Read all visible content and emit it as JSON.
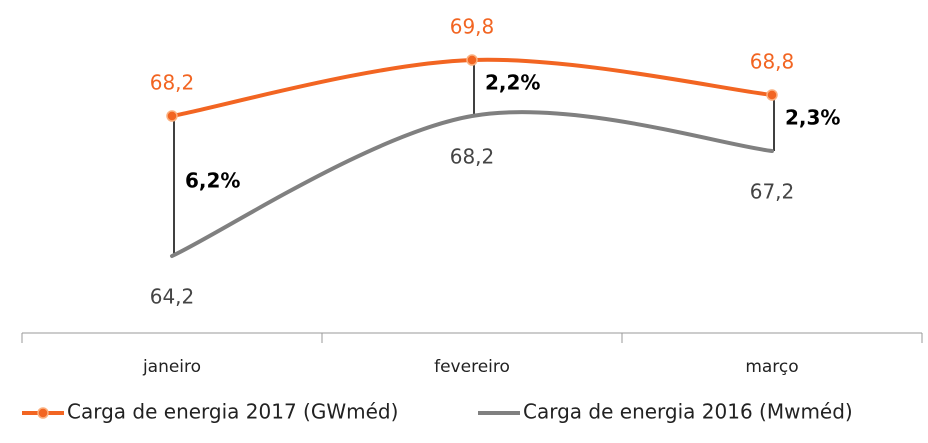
{
  "chart_data": {
    "type": "line",
    "categories": [
      "janeiro",
      "fevereiro",
      "março"
    ],
    "series": [
      {
        "name": "Carga de energia 2017 (GWméd)",
        "color": "#f26522",
        "values": [
          68.2,
          69.8,
          68.8
        ],
        "value_labels": [
          "68,2",
          "69,8",
          "68,8"
        ],
        "markers": true
      },
      {
        "name": "Carga de energia 2016 (Mwméd)",
        "color": "#808080",
        "values": [
          64.2,
          68.2,
          67.2
        ],
        "value_labels": [
          "64,2",
          "68,2",
          "67,2"
        ],
        "markers": false
      }
    ],
    "annotations": [
      "6,2%",
      "2,2%",
      "2,3%"
    ],
    "legend": "bottom"
  }
}
